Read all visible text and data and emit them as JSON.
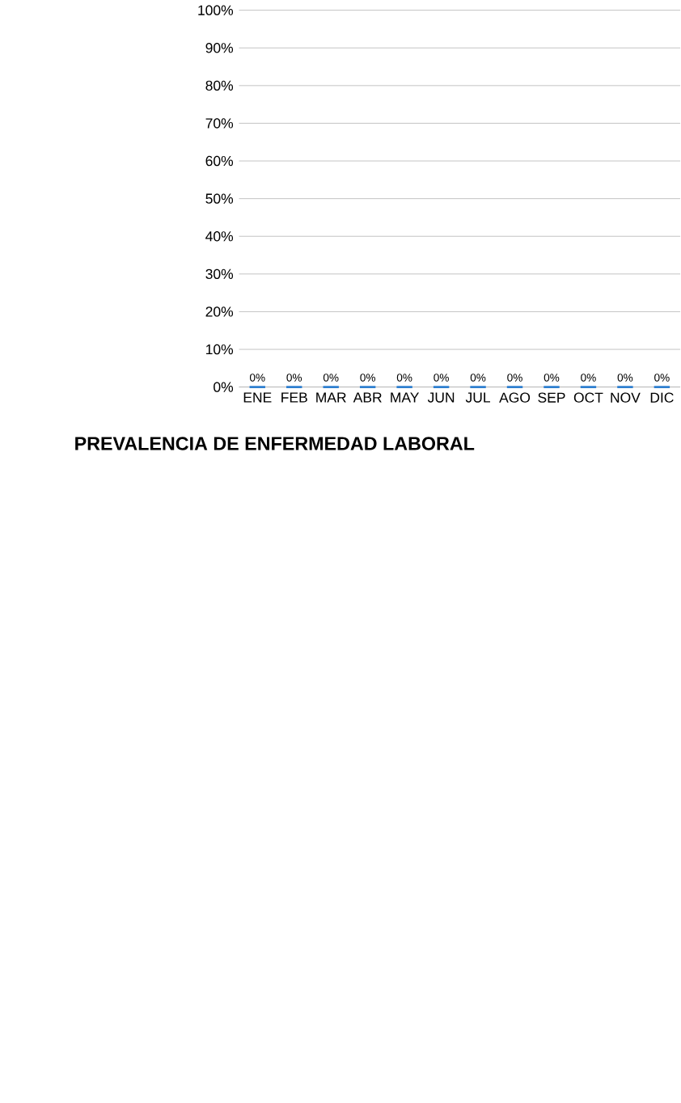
{
  "chart_data": {
    "type": "bar",
    "title": "PREVALENCIA DE ENFERMEDAD LABORAL",
    "categories": [
      "ENE",
      "FEB",
      "MAR",
      "ABR",
      "MAY",
      "JUN",
      "JUL",
      "AGO",
      "SEP",
      "OCT",
      "NOV",
      "DIC"
    ],
    "values": [
      0,
      0,
      0,
      0,
      0,
      0,
      0,
      0,
      0,
      0,
      0,
      0
    ],
    "value_labels": [
      "0%",
      "0%",
      "0%",
      "0%",
      "0%",
      "0%",
      "0%",
      "0%",
      "0%",
      "0%",
      "0%",
      "0%"
    ],
    "color": "#2e7fd0",
    "ylim": [
      0,
      100
    ],
    "yticks": [
      {
        "value": 0,
        "label": "0%"
      },
      {
        "value": 10,
        "label": "10%"
      },
      {
        "value": 20,
        "label": "20%"
      },
      {
        "value": 30,
        "label": "30%"
      },
      {
        "value": 40,
        "label": "40%"
      },
      {
        "value": 50,
        "label": "50%"
      },
      {
        "value": 60,
        "label": "60%"
      },
      {
        "value": 70,
        "label": "70%"
      },
      {
        "value": 80,
        "label": "80%"
      },
      {
        "value": 90,
        "label": "90%"
      },
      {
        "value": 100,
        "label": "100%"
      }
    ],
    "grid": "y"
  }
}
